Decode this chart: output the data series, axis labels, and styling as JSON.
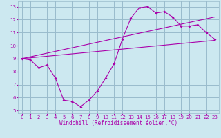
{
  "xlabel": "Windchill (Refroidissement éolien,°C)",
  "bg_color": "#cce8f0",
  "line_color": "#aa00aa",
  "grid_color": "#99bbcc",
  "xlim": [
    -0.5,
    23.5
  ],
  "ylim": [
    4.8,
    13.4
  ],
  "xticks": [
    0,
    1,
    2,
    3,
    4,
    5,
    6,
    7,
    8,
    9,
    10,
    11,
    12,
    13,
    14,
    15,
    16,
    17,
    18,
    19,
    20,
    21,
    22,
    23
  ],
  "yticks": [
    5,
    6,
    7,
    8,
    9,
    10,
    11,
    12,
    13
  ],
  "line1_x": [
    0,
    1,
    2,
    3,
    4,
    5,
    6,
    7,
    8,
    9,
    10,
    11,
    12,
    13,
    14,
    15,
    16,
    17,
    18,
    19,
    20,
    21,
    22,
    23
  ],
  "line1_y": [
    9.0,
    8.9,
    8.3,
    8.5,
    7.5,
    5.8,
    5.7,
    5.3,
    5.8,
    6.5,
    7.5,
    8.6,
    10.5,
    12.1,
    12.9,
    13.0,
    12.5,
    12.6,
    12.2,
    11.5,
    11.5,
    11.6,
    11.0,
    10.5
  ],
  "line2_x": [
    0,
    23
  ],
  "line2_y": [
    9.0,
    10.4
  ],
  "line3_x": [
    0,
    23
  ],
  "line3_y": [
    9.0,
    12.2
  ]
}
